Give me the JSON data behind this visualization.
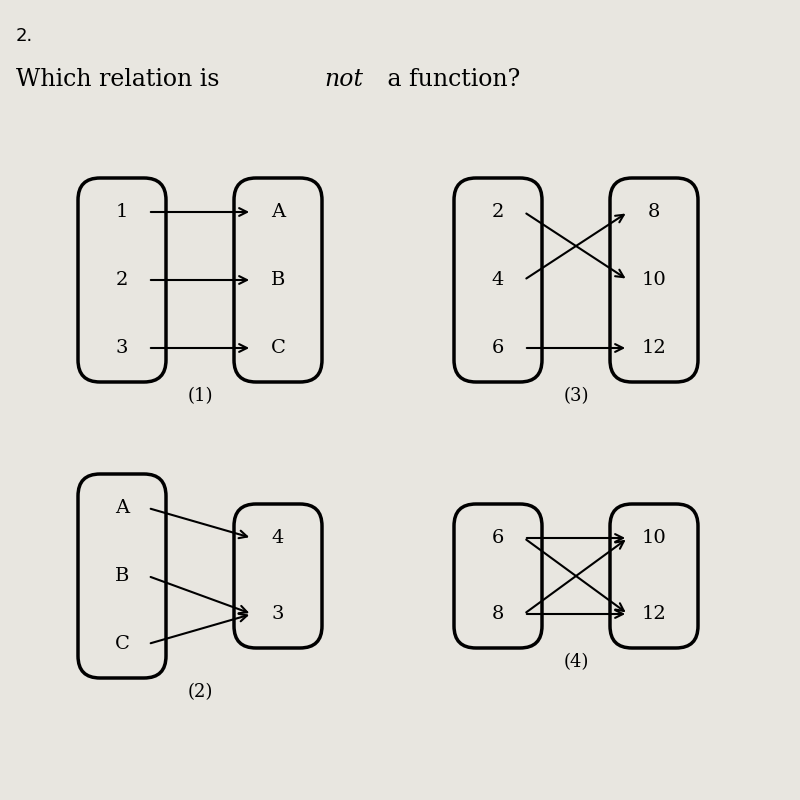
{
  "bg_color": "#c8c8c8",
  "paper_color": "#e8e6e0",
  "question_num": "2.",
  "title_parts": [
    "Which relation is ",
    "not",
    " a function?"
  ],
  "diagrams": [
    {
      "label": "(1)",
      "left_items": [
        "1",
        "2",
        "3"
      ],
      "right_items": [
        "A",
        "B",
        "C"
      ],
      "arrows": [
        [
          0,
          0
        ],
        [
          1,
          1
        ],
        [
          2,
          2
        ]
      ]
    },
    {
      "label": "(3)",
      "left_items": [
        "2",
        "4",
        "6"
      ],
      "right_items": [
        "8",
        "10",
        "12"
      ],
      "arrows": [
        [
          0,
          1
        ],
        [
          1,
          0
        ],
        [
          2,
          2
        ]
      ]
    },
    {
      "label": "(2)",
      "left_items": [
        "A",
        "B",
        "C"
      ],
      "right_items": [
        "4",
        "3"
      ],
      "arrows": [
        [
          0,
          0
        ],
        [
          1,
          1
        ],
        [
          2,
          1
        ]
      ]
    },
    {
      "label": "(4)",
      "left_items": [
        "6",
        "8"
      ],
      "right_items": [
        "10",
        "12"
      ],
      "arrows": [
        [
          0,
          0
        ],
        [
          0,
          1
        ],
        [
          1,
          0
        ],
        [
          1,
          1
        ]
      ]
    }
  ]
}
